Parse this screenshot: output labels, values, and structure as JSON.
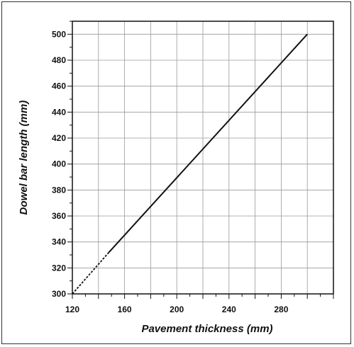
{
  "chart_data": {
    "type": "line",
    "xlabel": "Pavement thickness (mm)",
    "ylabel": "Dowel bar length (mm)",
    "xlim": [
      120,
      320
    ],
    "ylim": [
      300,
      510
    ],
    "x_ticks": [
      120,
      160,
      200,
      240,
      280
    ],
    "x_tick_labels": [
      "120",
      "160",
      "200",
      "240",
      "280"
    ],
    "y_ticks": [
      300,
      320,
      340,
      360,
      380,
      400,
      420,
      440,
      460,
      480,
      500
    ],
    "y_tick_labels": [
      "300",
      "320",
      "340",
      "360",
      "380",
      "400",
      "420",
      "440",
      "460",
      "480",
      "500"
    ],
    "grid": true,
    "series": [
      {
        "style": "dashed",
        "x": [
          120,
          148
        ],
        "y": [
          300,
          332
        ]
      },
      {
        "style": "solid",
        "x": [
          148,
          300
        ],
        "y": [
          332,
          500
        ]
      }
    ],
    "colors": {
      "line": "#111111",
      "grid": "#9a9a9a",
      "axis": "#111111"
    }
  }
}
